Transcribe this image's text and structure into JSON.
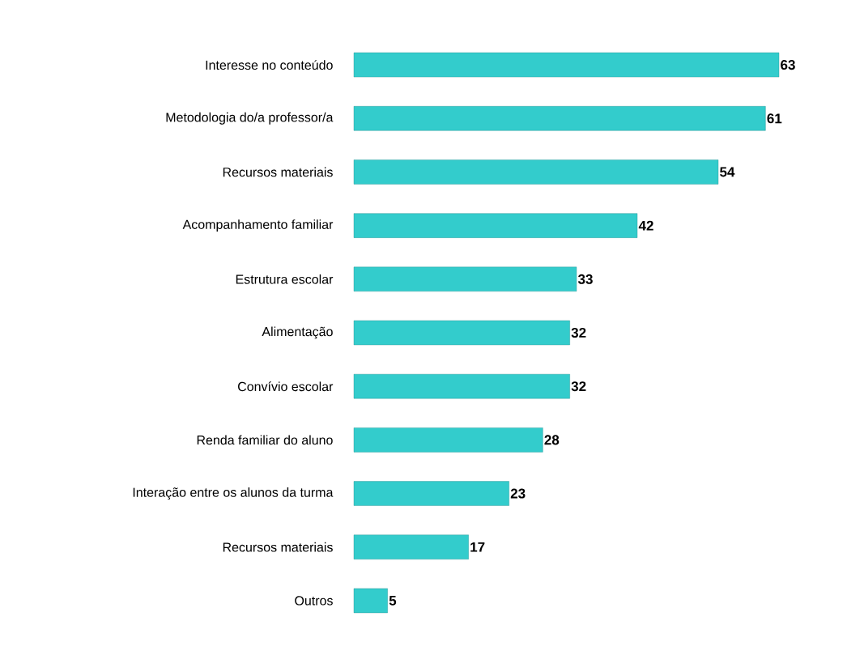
{
  "chart_data": {
    "type": "bar",
    "orientation": "horizontal",
    "categories": [
      "Interesse no conteúdo",
      "Metodologia do/a professor/a",
      "Recursos materiais",
      "Acompanhamento familiar",
      "Estrutura escolar",
      "Alimentação",
      "Convívio escolar",
      "Renda familiar do aluno",
      "Interação entre os alunos da turma",
      "Recursos materiais",
      "Outros"
    ],
    "values": [
      63,
      61,
      54,
      42,
      33,
      32,
      32,
      28,
      23,
      17,
      5
    ],
    "color": "#33cccc",
    "data_labels": true
  }
}
